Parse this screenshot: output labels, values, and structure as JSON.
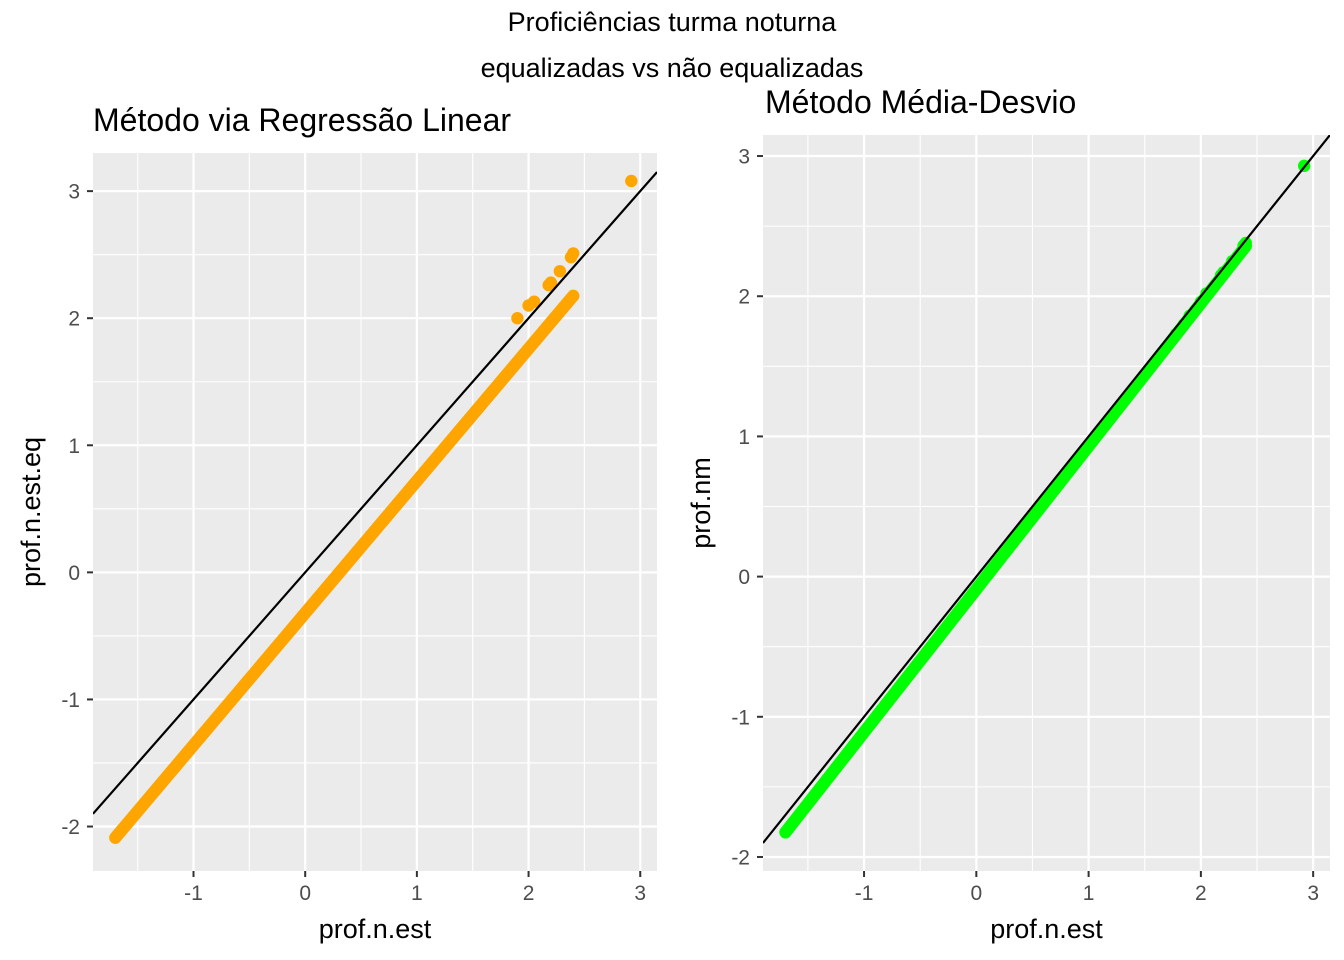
{
  "figure": {
    "title_line1": "Proficiências turma noturna",
    "title_line2": "equalizadas vs não equalizadas"
  },
  "chart_data": [
    {
      "type": "scatter",
      "title": "Método via Regressão Linear",
      "xlabel": "prof.n.est",
      "ylabel": "prof.n.est.eq",
      "xlim": [
        -1.9,
        3.15
      ],
      "ylim": [
        -2.35,
        3.3
      ],
      "xticks": [
        -1,
        0,
        1,
        2,
        3
      ],
      "yticks": [
        -2,
        -1,
        0,
        1,
        2,
        3
      ],
      "grid": true,
      "point_color": "#FFA500",
      "reference_line": {
        "label": "y = x",
        "slope": 1,
        "intercept": 0,
        "color": "#000000"
      },
      "fit": {
        "slope": 1.04,
        "intercept": -0.32
      },
      "x_range": [
        -1.7,
        2.4
      ],
      "points": [
        {
          "x": 1.9,
          "y": 2.0
        },
        {
          "x": 2.0,
          "y": 2.1
        },
        {
          "x": 2.05,
          "y": 2.13
        },
        {
          "x": 2.18,
          "y": 2.26
        },
        {
          "x": 2.2,
          "y": 2.28
        },
        {
          "x": 2.28,
          "y": 2.37
        },
        {
          "x": 2.38,
          "y": 2.48
        },
        {
          "x": 2.4,
          "y": 2.51
        },
        {
          "x": 2.92,
          "y": 3.08
        }
      ]
    },
    {
      "type": "scatter",
      "title": "Método Média-Desvio",
      "xlabel": "prof.n.est",
      "ylabel": "prof.nm",
      "xlim": [
        -1.9,
        3.15
      ],
      "ylim": [
        -2.1,
        3.15
      ],
      "xticks": [
        -1,
        0,
        1,
        2,
        3
      ],
      "yticks": [
        -2,
        -1,
        0,
        1,
        2,
        3
      ],
      "grid": true,
      "point_color": "#00FF00",
      "reference_line": {
        "label": "y = x",
        "slope": 1,
        "intercept": 0,
        "color": "#000000"
      },
      "fit": {
        "slope": 1.02,
        "intercept": -0.09
      },
      "x_range": [
        -1.7,
        2.4
      ],
      "points": [
        {
          "x": 1.78,
          "y": 1.73
        },
        {
          "x": 1.85,
          "y": 1.8
        },
        {
          "x": 1.9,
          "y": 1.86
        },
        {
          "x": 2.0,
          "y": 1.96
        },
        {
          "x": 2.05,
          "y": 2.02
        },
        {
          "x": 2.18,
          "y": 2.15
        },
        {
          "x": 2.2,
          "y": 2.17
        },
        {
          "x": 2.28,
          "y": 2.25
        },
        {
          "x": 2.38,
          "y": 2.36
        },
        {
          "x": 2.4,
          "y": 2.38
        },
        {
          "x": 2.92,
          "y": 2.93
        }
      ]
    }
  ]
}
